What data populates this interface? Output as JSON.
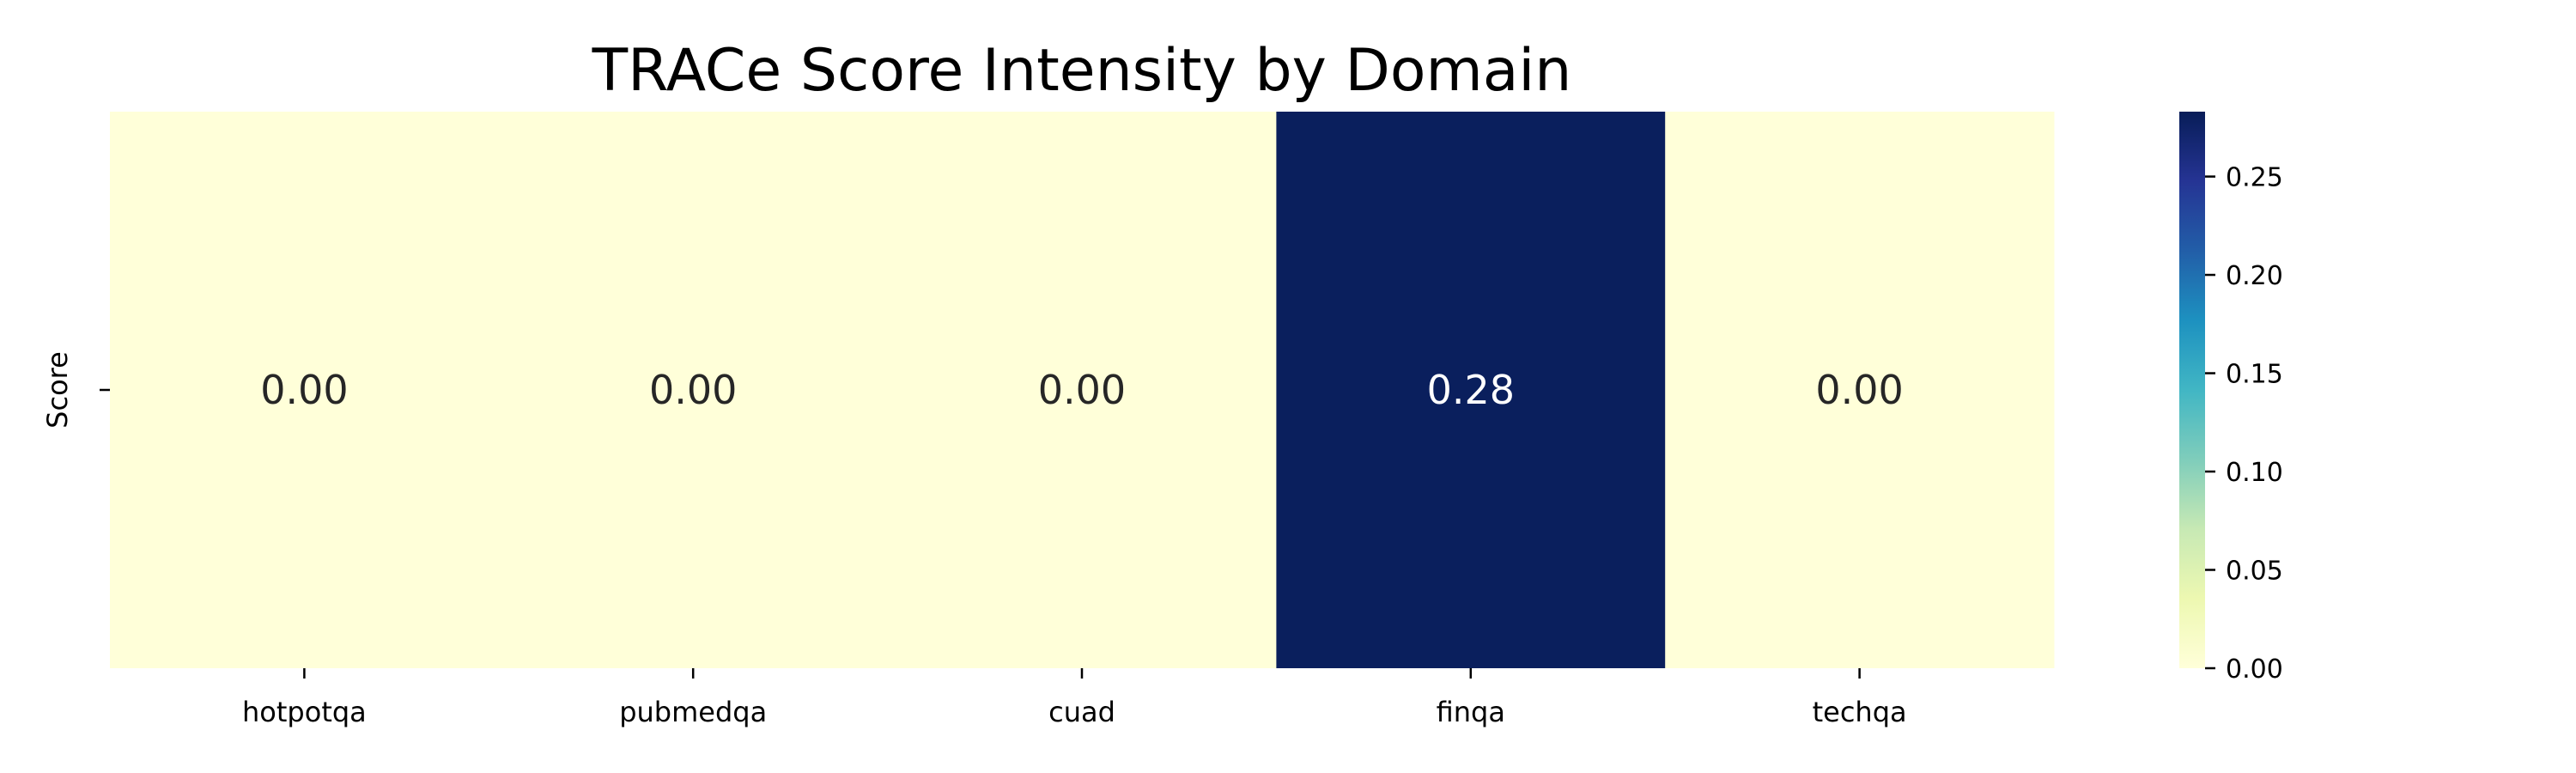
{
  "chart_data": {
    "type": "heatmap",
    "title": "TRACe Score Intensity by Domain",
    "xlabel": "",
    "ylabel": "",
    "columns": [
      "hotpotqa",
      "pubmedqa",
      "cuad",
      "finqa",
      "techqa"
    ],
    "rows": [
      "Score"
    ],
    "values": [
      [
        0.0,
        0.0,
        0.0,
        0.28,
        0.0
      ]
    ],
    "value_labels": [
      [
        "0.00",
        "0.00",
        "0.00",
        "0.28",
        "0.00"
      ]
    ],
    "colormap": "YlGnBu",
    "colorbar": {
      "range": [
        0.0,
        0.283
      ],
      "ticks": [
        0.0,
        0.05,
        0.1,
        0.15,
        0.2,
        0.25
      ],
      "tick_labels": [
        "0.00",
        "0.05",
        "0.10",
        "0.15",
        "0.20",
        "0.25"
      ]
    }
  },
  "colors": {
    "low": "#ffffd9",
    "high": "#081d58",
    "text_dark": "#262626",
    "text_light": "#ffffff"
  }
}
